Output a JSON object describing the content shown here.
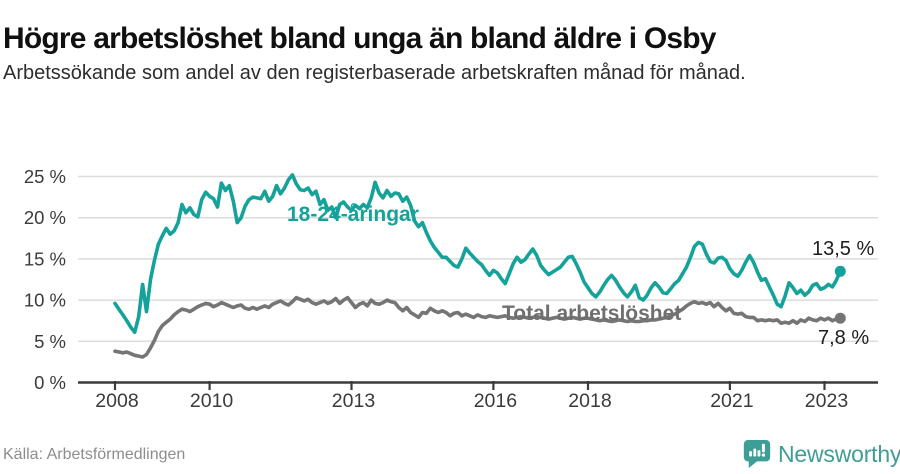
{
  "header": {
    "title": "Högre arbetslöshet bland unga än bland äldre i Osby",
    "subtitle": "Arbetssökande som andel av den registerbaserade arbetskraften månad för månad."
  },
  "chart_data": {
    "type": "line",
    "title": "Högre arbetslöshet bland unga än bland äldre i Osby",
    "x_axis": {
      "start_year": 2008,
      "step_months": 1,
      "ticks": [
        2008,
        2010,
        2013,
        2016,
        2018,
        2021,
        2023
      ],
      "tick_labels": [
        "2008",
        "2010",
        "2013",
        "2016",
        "2018",
        "2021",
        "2023"
      ]
    },
    "y_axis": {
      "unit": "%",
      "ticks": [
        0,
        5,
        10,
        15,
        20,
        25
      ],
      "tick_labels": [
        "0 %",
        "5 %",
        "10 %",
        "15 %",
        "20 %",
        "25 %"
      ],
      "range": [
        0,
        26
      ]
    },
    "grid": true,
    "series": [
      {
        "name": "18-24-åringar",
        "color": "#14a29a",
        "end_label": "13,5 %",
        "end_value": 13.5,
        "values": [
          9.6,
          8.9,
          8.2,
          7.5,
          6.7,
          6.1,
          8.0,
          11.9,
          8.6,
          12.5,
          14.8,
          16.8,
          17.8,
          18.7,
          18.0,
          18.4,
          19.4,
          21.6,
          20.6,
          21.2,
          20.4,
          20.1,
          22.2,
          23.1,
          22.6,
          22.3,
          21.3,
          24.2,
          23.3,
          23.9,
          22.0,
          19.4,
          20.0,
          21.4,
          22.2,
          22.5,
          22.4,
          22.3,
          23.2,
          22.0,
          22.6,
          23.9,
          22.9,
          23.6,
          24.6,
          25.2,
          24.1,
          23.4,
          23.3,
          23.6,
          22.8,
          23.2,
          21.6,
          22.2,
          20.9,
          21.3,
          20.0,
          21.6,
          21.9,
          21.3,
          20.9,
          21.5,
          21.1,
          21.6,
          21.2,
          22.4,
          24.3,
          23.0,
          22.4,
          23.3,
          22.6,
          23.0,
          22.9,
          22.0,
          22.5,
          21.5,
          19.6,
          18.9,
          19.4,
          18.2,
          17.2,
          16.4,
          15.8,
          15.2,
          15.2,
          14.7,
          14.2,
          14.0,
          15.0,
          16.3,
          15.7,
          15.2,
          14.7,
          14.3,
          13.6,
          13.0,
          13.6,
          13.3,
          12.6,
          12.0,
          13.2,
          14.4,
          15.2,
          14.6,
          14.9,
          15.6,
          16.2,
          15.4,
          14.2,
          13.6,
          13.1,
          13.4,
          13.7,
          14.0,
          14.6,
          15.2,
          15.3,
          14.4,
          13.4,
          12.2,
          11.5,
          10.8,
          10.4,
          11.0,
          11.8,
          12.5,
          13.0,
          12.4,
          11.6,
          10.9,
          10.4,
          11.0,
          11.8,
          10.3,
          10.0,
          10.6,
          11.5,
          12.1,
          11.6,
          10.9,
          10.8,
          11.4,
          12.0,
          12.4,
          13.2,
          14.0,
          15.2,
          16.5,
          17.0,
          16.8,
          15.6,
          14.7,
          14.5,
          15.1,
          15.2,
          14.8,
          13.8,
          13.2,
          12.9,
          13.6,
          14.6,
          15.4,
          14.6,
          13.4,
          12.4,
          12.6,
          11.6,
          10.6,
          9.5,
          9.2,
          10.5,
          12.1,
          11.5,
          10.8,
          11.2,
          10.6,
          11.0,
          11.8,
          12.0,
          11.3,
          11.5,
          11.9,
          11.6,
          12.4,
          13.5
        ]
      },
      {
        "name": "Total arbetslöshet",
        "color": "#757575",
        "end_label": "7,8 %",
        "end_value": 7.8,
        "values": [
          3.8,
          3.7,
          3.6,
          3.7,
          3.5,
          3.3,
          3.2,
          3.1,
          3.4,
          4.2,
          5.1,
          6.2,
          6.9,
          7.3,
          7.7,
          8.2,
          8.6,
          8.9,
          8.8,
          8.6,
          8.9,
          9.2,
          9.4,
          9.6,
          9.5,
          9.2,
          9.4,
          9.7,
          9.5,
          9.3,
          9.1,
          9.3,
          9.4,
          9.0,
          8.9,
          9.1,
          8.9,
          9.1,
          9.3,
          9.1,
          9.5,
          9.7,
          9.9,
          9.6,
          9.4,
          9.8,
          10.3,
          10.1,
          9.9,
          10.1,
          9.7,
          9.5,
          9.7,
          9.9,
          9.6,
          9.8,
          10.2,
          9.6,
          10.0,
          10.3,
          9.7,
          9.1,
          9.5,
          9.7,
          9.3,
          10.0,
          9.6,
          9.5,
          9.7,
          10.0,
          9.8,
          9.7,
          9.1,
          8.7,
          9.1,
          8.5,
          8.2,
          7.9,
          8.5,
          8.4,
          9.0,
          8.7,
          8.5,
          8.7,
          8.5,
          8.1,
          8.4,
          8.5,
          8.1,
          8.3,
          8.1,
          7.9,
          8.2,
          8.0,
          7.9,
          8.1,
          8.0,
          7.9,
          8.0,
          8.1,
          7.9,
          7.8,
          7.9,
          8.0,
          7.9,
          7.8,
          7.9,
          8.0,
          7.9,
          7.8,
          7.7,
          7.8,
          7.9,
          7.8,
          7.7,
          7.8,
          7.9,
          7.8,
          7.7,
          7.8,
          7.8,
          7.7,
          7.6,
          7.5,
          7.6,
          7.5,
          7.4,
          7.5,
          7.6,
          7.5,
          7.4,
          7.5,
          7.4,
          7.4,
          7.5,
          7.5,
          7.6,
          7.6,
          7.7,
          7.8,
          7.9,
          8.1,
          8.3,
          8.6,
          8.9,
          9.3,
          9.6,
          9.8,
          9.6,
          9.7,
          9.5,
          9.7,
          9.2,
          9.6,
          9.1,
          8.7,
          9.0,
          8.4,
          8.3,
          8.4,
          8.0,
          7.9,
          7.9,
          7.5,
          7.6,
          7.5,
          7.6,
          7.5,
          7.6,
          7.2,
          7.3,
          7.2,
          7.5,
          7.2,
          7.6,
          7.4,
          7.8,
          7.6,
          7.5,
          7.8,
          7.6,
          7.8,
          7.5,
          7.7,
          7.8
        ]
      }
    ]
  },
  "styles": {
    "grid_color": "#dcdcdc",
    "axis_color": "#3b3b3b",
    "axis_text_color": "#3b3b3b",
    "line_width": 3.6,
    "dot_radius": 5.5
  },
  "footer": {
    "source": "Källa: Arbetsförmedlingen",
    "brand": "Newsworthy",
    "brand_color": "#3e9d96"
  }
}
